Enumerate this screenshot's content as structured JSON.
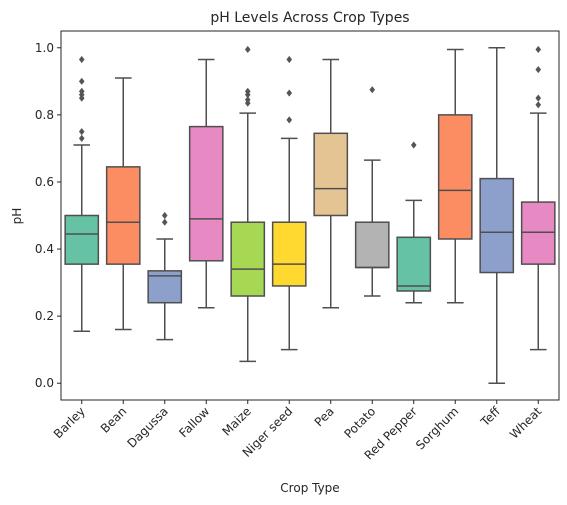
{
  "chart_data": {
    "type": "box",
    "title": "pH Levels Across Crop Types",
    "xlabel": "Crop Type",
    "ylabel": "pH",
    "ylim": [
      -0.05,
      1.05
    ],
    "yticks": [
      0.0,
      0.2,
      0.4,
      0.6,
      0.8,
      1.0
    ],
    "ytick_labels": [
      "0.0",
      "0.2",
      "0.4",
      "0.6",
      "0.8",
      "1.0"
    ],
    "grid": false,
    "categories": [
      "Barley",
      "Bean",
      "Dagussa",
      "Fallow",
      "Maize",
      "Niger seed",
      "Pea",
      "Potato",
      "Red Pepper",
      "Sorghum",
      "Teff",
      "Wheat"
    ],
    "colors": [
      "#66c2a5",
      "#fc8d62",
      "#8da0cb",
      "#e78ac3",
      "#a6d854",
      "#ffd92f",
      "#e5c494",
      "#b3b3b3",
      "#66c2a5",
      "#fc8d62",
      "#8da0cb",
      "#e78ac3"
    ],
    "boxes": [
      {
        "whislo": 0.155,
        "q1": 0.355,
        "med": 0.445,
        "q3": 0.5,
        "whishi": 0.71,
        "fliers": [
          0.73,
          0.75,
          0.85,
          0.86,
          0.87,
          0.9,
          0.965
        ]
      },
      {
        "whislo": 0.16,
        "q1": 0.355,
        "med": 0.48,
        "q3": 0.645,
        "whishi": 0.91,
        "fliers": []
      },
      {
        "whislo": 0.13,
        "q1": 0.24,
        "med": 0.32,
        "q3": 0.335,
        "whishi": 0.43,
        "fliers": [
          0.48,
          0.5
        ]
      },
      {
        "whislo": 0.225,
        "q1": 0.365,
        "med": 0.49,
        "q3": 0.765,
        "whishi": 0.965,
        "fliers": []
      },
      {
        "whislo": 0.065,
        "q1": 0.26,
        "med": 0.34,
        "q3": 0.48,
        "whishi": 0.805,
        "fliers": [
          0.835,
          0.845,
          0.86,
          0.87,
          0.995
        ]
      },
      {
        "whislo": 0.1,
        "q1": 0.29,
        "med": 0.355,
        "q3": 0.48,
        "whishi": 0.73,
        "fliers": [
          0.785,
          0.865,
          0.965
        ]
      },
      {
        "whislo": 0.225,
        "q1": 0.5,
        "med": 0.58,
        "q3": 0.745,
        "whishi": 0.965,
        "fliers": []
      },
      {
        "whislo": 0.26,
        "q1": 0.345,
        "med": 0.345,
        "q3": 0.48,
        "whishi": 0.665,
        "fliers": [
          0.875
        ]
      },
      {
        "whislo": 0.24,
        "q1": 0.275,
        "med": 0.29,
        "q3": 0.435,
        "whishi": 0.545,
        "fliers": [
          0.71
        ]
      },
      {
        "whislo": 0.24,
        "q1": 0.43,
        "med": 0.575,
        "q3": 0.8,
        "whishi": 0.995,
        "fliers": []
      },
      {
        "whislo": 0.0,
        "q1": 0.33,
        "med": 0.45,
        "q3": 0.61,
        "whishi": 1.0,
        "fliers": []
      },
      {
        "whislo": 0.1,
        "q1": 0.355,
        "med": 0.45,
        "q3": 0.54,
        "whishi": 0.805,
        "fliers": [
          0.83,
          0.85,
          0.935,
          0.995
        ]
      }
    ]
  }
}
